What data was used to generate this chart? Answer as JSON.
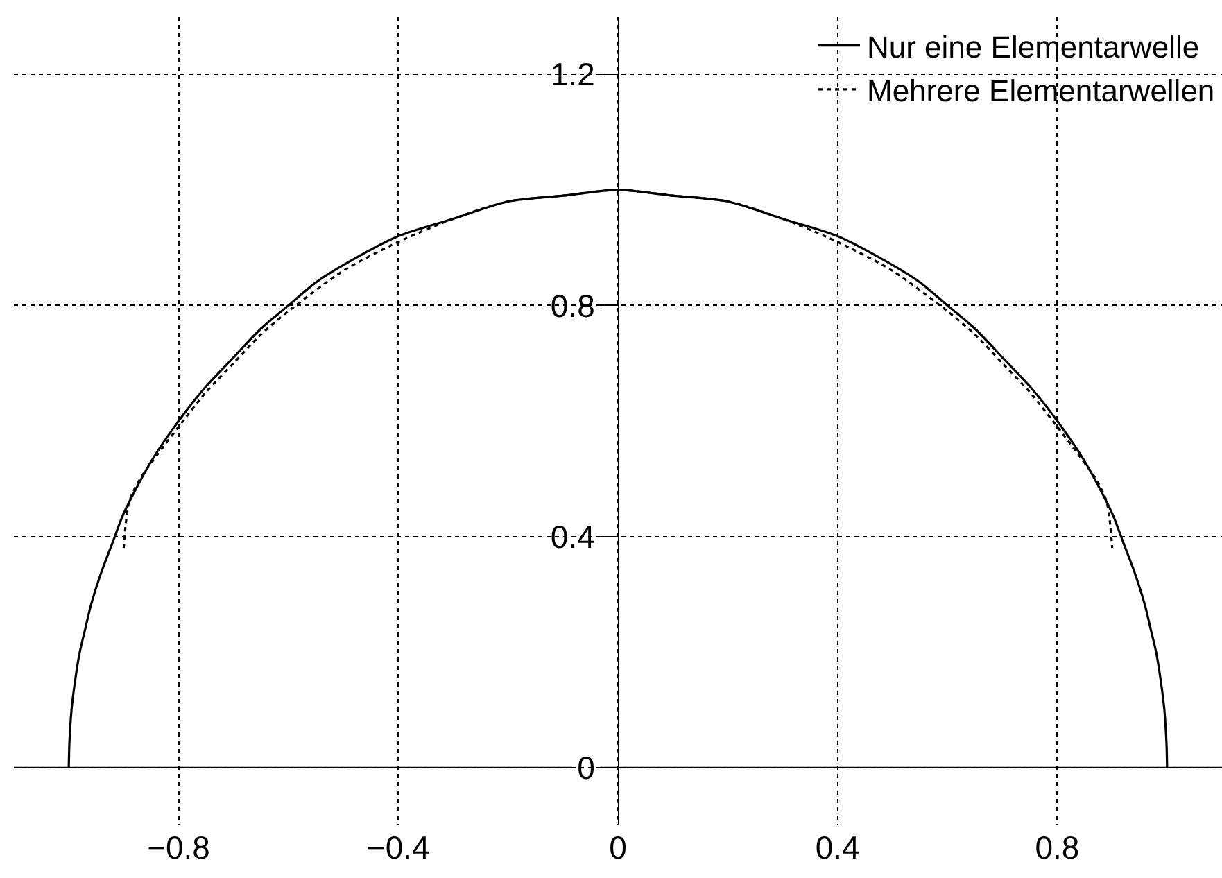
{
  "chart_data": {
    "type": "line",
    "series": [
      {
        "name": "Nur eine Elementarwelle",
        "color": "#000000",
        "line_style": "solid",
        "x": [
          -1,
          -0.999,
          -0.995,
          -0.99,
          -0.98,
          -0.97,
          -0.96,
          -0.94,
          -0.92,
          -0.9,
          -0.85,
          -0.8,
          -0.75,
          -0.7,
          -0.65,
          -0.6,
          -0.55,
          -0.5,
          -0.4,
          -0.3,
          -0.2,
          -0.1,
          0,
          0.1,
          0.2,
          0.3,
          0.4,
          0.5,
          0.55,
          0.6,
          0.65,
          0.7,
          0.75,
          0.8,
          0.85,
          0.9,
          0.92,
          0.94,
          0.96,
          0.97,
          0.98,
          0.99,
          0.995,
          0.999,
          1
        ],
        "values": [
          0,
          0.04,
          0.1,
          0.14,
          0.2,
          0.24,
          0.28,
          0.34,
          0.39,
          0.44,
          0.53,
          0.6,
          0.66,
          0.71,
          0.76,
          0.8,
          0.84,
          0.87,
          0.92,
          0.95,
          0.98,
          0.99,
          1,
          0.99,
          0.98,
          0.95,
          0.92,
          0.87,
          0.84,
          0.8,
          0.76,
          0.71,
          0.66,
          0.6,
          0.53,
          0.44,
          0.39,
          0.34,
          0.28,
          0.24,
          0.2,
          0.14,
          0.1,
          0.04,
          0
        ]
      },
      {
        "name": "Mehrere Elementarwellen",
        "color": "#000000",
        "line_style": "dotted",
        "x": [
          -0.9,
          -0.89,
          -0.87,
          -0.84,
          -0.8,
          -0.75,
          -0.7,
          -0.65,
          -0.6,
          -0.5,
          -0.4,
          -0.3,
          -0.2,
          -0.1,
          0,
          0.1,
          0.2,
          0.3,
          0.4,
          0.5,
          0.6,
          0.65,
          0.7,
          0.75,
          0.8,
          0.84,
          0.87,
          0.89,
          0.9
        ],
        "values": [
          0.38,
          0.46,
          0.5,
          0.54,
          0.59,
          0.65,
          0.7,
          0.75,
          0.79,
          0.86,
          0.91,
          0.95,
          0.98,
          0.99,
          1,
          0.99,
          0.98,
          0.95,
          0.91,
          0.86,
          0.79,
          0.75,
          0.7,
          0.65,
          0.59,
          0.54,
          0.5,
          0.46,
          0.38
        ]
      }
    ],
    "xlim": [
      -1.1,
      1.1
    ],
    "ylim": [
      -0.1,
      1.3
    ],
    "xticks": [
      -0.8,
      -0.4,
      0,
      0.4,
      0.8
    ],
    "yticks": [
      0,
      0.4,
      0.8,
      1.2
    ],
    "grid": true,
    "legend": "top right"
  }
}
